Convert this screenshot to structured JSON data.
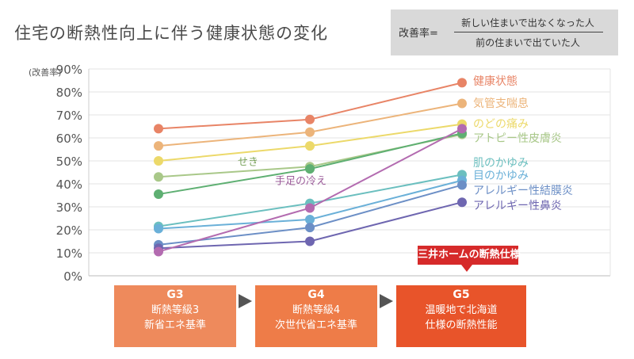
{
  "title": "住宅の断熱性向上に伴う健康状態の変化",
  "formula": {
    "label": "改善率=",
    "numerator": "新しい住まいで出なくなった人",
    "denominator": "前の住まいで出ていた人"
  },
  "callout": "三井ホームの断熱仕様",
  "stages": [
    {
      "code": "G3",
      "line1": "断熱等級3",
      "line2": "新省エネ基準",
      "color": "#ee8a5c"
    },
    {
      "code": "G4",
      "line1": "断熱等級4",
      "line2": "次世代省エネ基準",
      "color": "#ee7c48"
    },
    {
      "code": "G5",
      "line1": "温暖地で北海道",
      "line2": "仕様の断熱性能",
      "color": "#e8542a"
    }
  ],
  "chart_data": {
    "type": "line",
    "ylabel": "(改善率)",
    "ylim": [
      0,
      90
    ],
    "yticks": [
      "0%",
      "10%",
      "20%",
      "30%",
      "40%",
      "50%",
      "60%",
      "70%",
      "80%",
      "90%"
    ],
    "categories": [
      "G3",
      "G4",
      "G5"
    ],
    "grid": true,
    "series": [
      {
        "name": "健康状態",
        "values": [
          64,
          68,
          84
        ],
        "color": "#e88466",
        "labeled_at_end": true
      },
      {
        "name": "気管支喘息",
        "values": [
          56.5,
          62.5,
          75
        ],
        "color": "#ecb47a",
        "labeled_at_end": true
      },
      {
        "name": "のどの痛み",
        "values": [
          50,
          56.5,
          66
        ],
        "color": "#ecd96a",
        "labeled_at_end": true
      },
      {
        "name": "アトピー性皮膚炎",
        "values": [
          43,
          47.5,
          61.5
        ],
        "color": "#a9c889",
        "labeled_at_end": true
      },
      {
        "name": "せき",
        "values": [
          35.5,
          46.5,
          62
        ],
        "color": "#5eaf72",
        "labeled_at_end": false
      },
      {
        "name": "肌のかゆみ",
        "values": [
          21.5,
          31.5,
          44
        ],
        "color": "#6bbfbf",
        "labeled_at_end": true
      },
      {
        "name": "目のかゆみ",
        "values": [
          20.5,
          24.5,
          41.5
        ],
        "color": "#6ab0d8",
        "labeled_at_end": true
      },
      {
        "name": "アレルギー性結膜炎",
        "values": [
          13.5,
          21,
          39.5
        ],
        "color": "#6c8fc6",
        "labeled_at_end": true
      },
      {
        "name": "アレルギー性鼻炎",
        "values": [
          12,
          15,
          32
        ],
        "color": "#6e66b0",
        "labeled_at_end": true
      },
      {
        "name": "手足の冷え",
        "values": [
          10.5,
          29.5,
          64
        ],
        "color": "#b36bb0",
        "labeled_at_end": false
      }
    ],
    "inline_labels": [
      {
        "text": "せき",
        "color": "#7aa35c"
      },
      {
        "text": "手足の冷え",
        "color": "#9b5c9a"
      }
    ]
  }
}
